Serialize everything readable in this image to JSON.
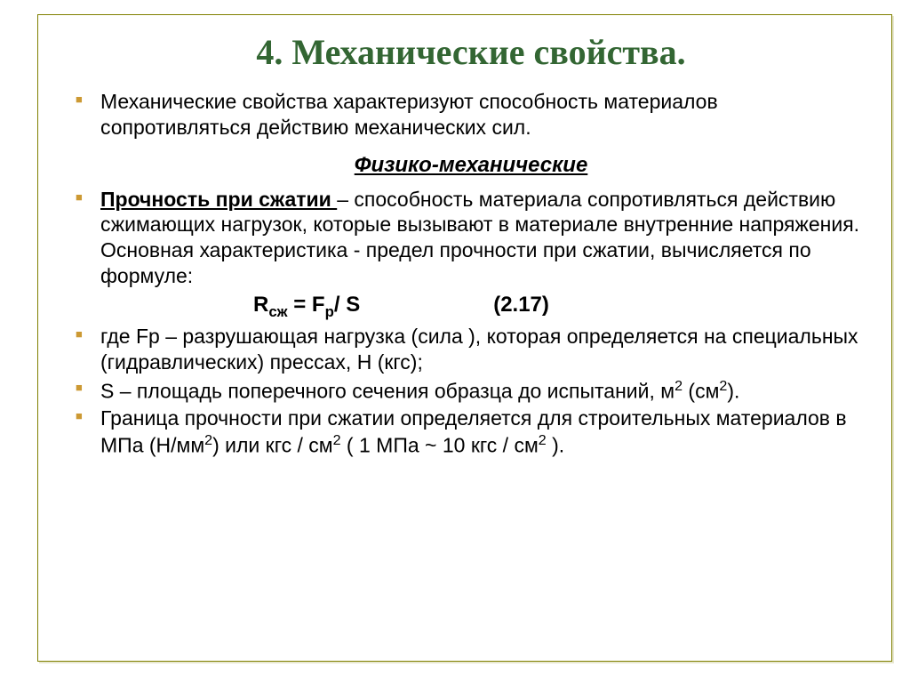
{
  "colors": {
    "title": "#336633",
    "bullet": "#cc9933",
    "text": "#000000",
    "frame": "#808000"
  },
  "title": "4. Механические свойства.",
  "intro": "Механические свойства характеризуют способность материалов сопротивляться действию механических сил.",
  "subtitle": "Физико-механические",
  "item2_lead": "Прочность при сжатии ",
  "item2_rest": "– способность материала сопротивляться действию сжимающих нагрузок, которые вызывают в материале внутренние напряжения. Основная характеристика -  предел прочности при сжатии, вычисляется по формуле:",
  "formula_lhs": "R",
  "formula_sub": "сж",
  "formula_rhs": " = F",
  "formula_rhs_sub": "р",
  "formula_tail": "/ S",
  "formula_num": "(2.17)",
  "item3": "где Fр – разрушающая нагрузка  (сила ), которая определяется на специальных (гидравлических) прессах, Н (кгс);",
  "item4_a": "S – площадь поперечного сечения образца до испытаний, м",
  "item4_b": " (см",
  "item4_c": ").",
  "item5_a": "Граница прочности при сжатии определяется для строительных материалов в МПа (Н/мм",
  "item5_b": ") или кгс / см",
  "item5_c": " ( 1 МПа ~ 10 кгс / см",
  "item5_d": " )."
}
